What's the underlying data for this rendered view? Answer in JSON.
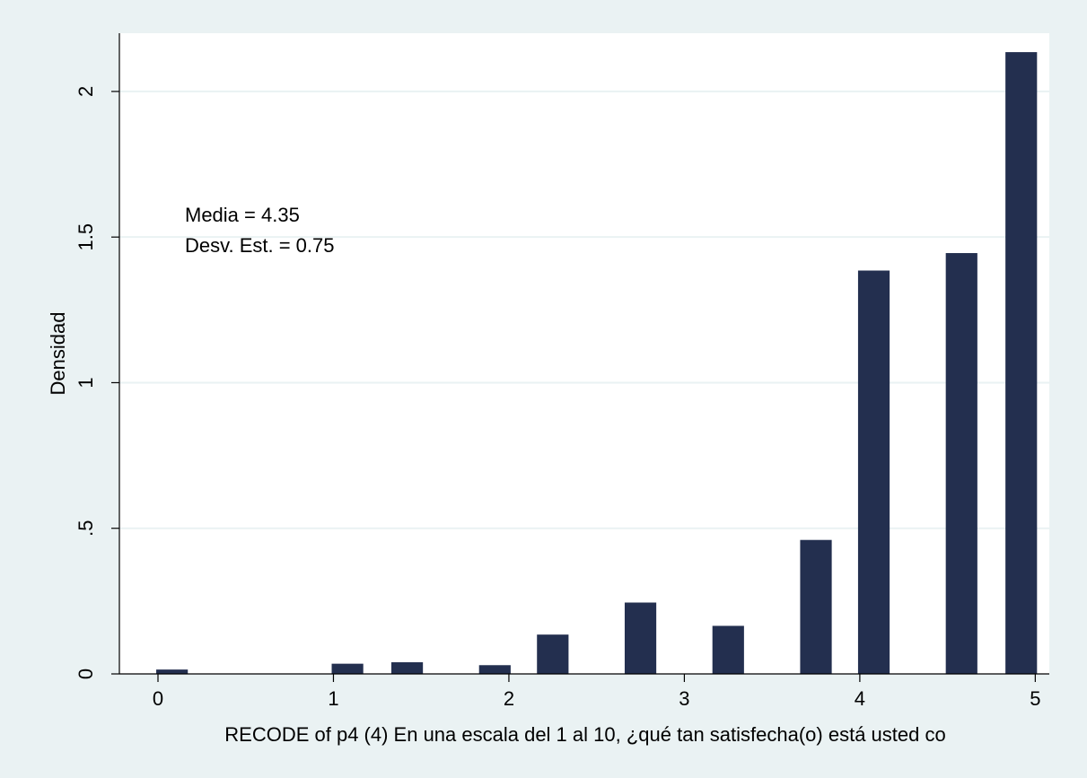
{
  "chart_data": {
    "type": "bar",
    "title": "",
    "xlabel": "RECODE of p4 (4) En una escala del 1 al 10, ¿qué tan satisfecha(o) está usted co",
    "ylabel": "Densidad",
    "xlim": [
      -0.22,
      5.08
    ],
    "ylim": [
      0,
      2.2
    ],
    "x_ticks": [
      0,
      1,
      2,
      3,
      4,
      5
    ],
    "x_tick_labels": [
      "0",
      "1",
      "2",
      "3",
      "4",
      "5"
    ],
    "y_ticks": [
      0,
      0.5,
      1,
      1.5,
      2
    ],
    "y_tick_labels": [
      "0",
      ".5",
      "1",
      "1.5",
      "2"
    ],
    "bar_width": 0.18,
    "bars": [
      {
        "x": 0.08,
        "value": 0.015
      },
      {
        "x": 1.08,
        "value": 0.035
      },
      {
        "x": 1.42,
        "value": 0.04
      },
      {
        "x": 1.92,
        "value": 0.03
      },
      {
        "x": 2.25,
        "value": 0.135
      },
      {
        "x": 2.75,
        "value": 0.245
      },
      {
        "x": 3.25,
        "value": 0.165
      },
      {
        "x": 3.75,
        "value": 0.46
      },
      {
        "x": 4.08,
        "value": 1.385
      },
      {
        "x": 4.58,
        "value": 1.445
      },
      {
        "x": 4.92,
        "value": 2.135
      }
    ],
    "annotations": [
      "Media = 4.35",
      "Desv. Est. = 0.75"
    ],
    "grid": true,
    "colors": {
      "bar": "#232f4f",
      "plot_bg": "#ffffff",
      "page_bg": "#eaf2f3",
      "grid": "#eaf2f3"
    }
  }
}
